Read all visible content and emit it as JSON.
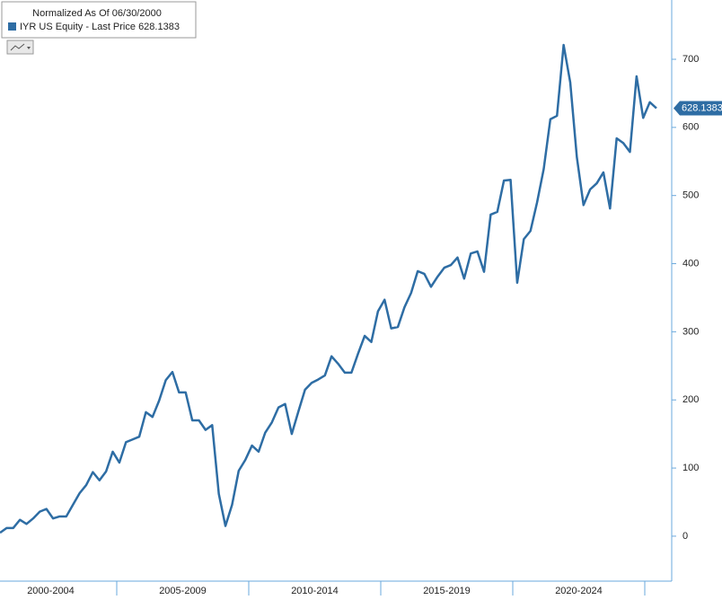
{
  "chart_data": {
    "type": "line",
    "title": "Normalized As Of 06/30/2000",
    "series": [
      {
        "name": "IYR US Equity - Last Price",
        "color": "#2e6da4",
        "values": [
          5,
          12,
          12,
          24,
          18,
          26,
          36,
          40,
          26,
          29,
          29,
          46,
          63,
          75,
          94,
          82,
          95,
          124,
          108,
          138,
          142,
          146,
          182,
          175,
          199,
          229,
          241,
          211,
          211,
          170,
          170,
          156,
          163,
          62,
          15,
          46,
          96,
          112,
          133,
          124,
          152,
          167,
          189,
          194,
          150,
          183,
          215,
          225,
          230,
          236,
          264,
          253,
          240,
          240,
          268,
          294,
          285,
          330,
          347,
          305,
          307,
          336,
          357,
          389,
          385,
          366,
          381,
          394,
          398,
          409,
          378,
          415,
          418,
          388,
          472,
          476,
          522,
          523,
          372,
          436,
          448,
          490,
          539,
          612,
          617,
          721,
          666,
          556,
          486,
          509,
          518,
          534,
          481,
          584,
          577,
          564,
          675,
          614,
          637,
          628.1383
        ]
      }
    ],
    "last_price": 628.1383,
    "periods": [
      "2000-2004",
      "2005-2009",
      "2010-2014",
      "2015-2019",
      "2020-2024"
    ],
    "ylim": [
      -66,
      787
    ],
    "yticks": [
      0,
      100,
      200,
      300,
      400,
      500,
      600,
      700
    ]
  }
}
